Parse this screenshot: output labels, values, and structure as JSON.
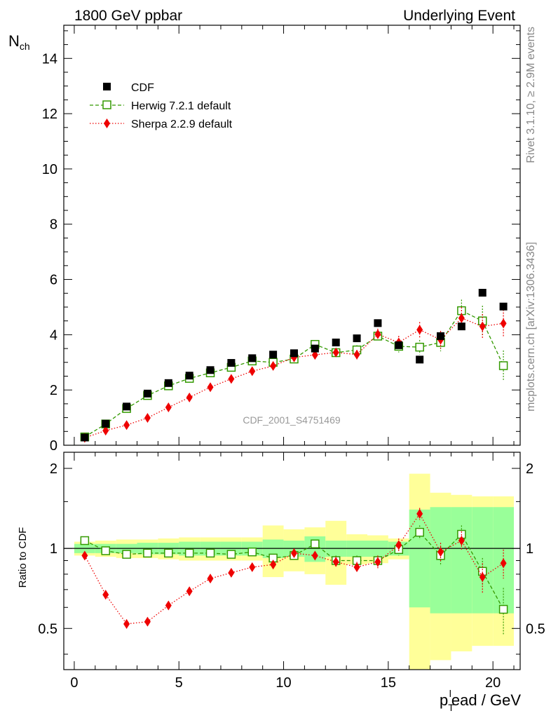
{
  "header": {
    "left": "1800 GeV ppbar",
    "right": "Underlying Event"
  },
  "side_labels": {
    "rivet": "Rivet 3.1.10, ≥ 2.9M events",
    "mcplots": "mcplots.cern.ch [arXiv:1306.3436]"
  },
  "watermark": "CDF_2001_S4751469",
  "chart_data": [
    {
      "type": "scatter",
      "panel": "main",
      "ylabel_main": "N",
      "ylabel_sub": "ch",
      "ylim": [
        0,
        15.2
      ],
      "xlim": [
        -0.5,
        21.3
      ],
      "yticks": [
        0,
        2,
        4,
        6,
        8,
        10,
        12,
        14
      ],
      "x": [
        0.5,
        1.5,
        2.5,
        3.5,
        4.5,
        5.5,
        6.5,
        7.5,
        8.5,
        9.5,
        10.5,
        11.5,
        12.5,
        13.5,
        14.5,
        15.5,
        16.5,
        17.5,
        18.5,
        19.5,
        20.5
      ],
      "legend": [
        "CDF",
        "Herwig 7.2.1 default",
        "Sherpa 2.2.9 default"
      ],
      "series": [
        {
          "name": "CDF",
          "color": "#000000",
          "marker": "square",
          "values": [
            0.28,
            0.78,
            1.4,
            1.87,
            2.25,
            2.52,
            2.72,
            2.98,
            3.15,
            3.28,
            3.33,
            3.5,
            3.72,
            3.87,
            4.42,
            3.62,
            3.1,
            3.95,
            4.3,
            5.52,
            5.02
          ]
        },
        {
          "name": "Herwig 7.2.1 default",
          "color": "#339900",
          "marker": "open-square",
          "line": "dashed",
          "values": [
            0.3,
            0.77,
            1.33,
            1.8,
            2.15,
            2.42,
            2.62,
            2.82,
            3.05,
            3.0,
            3.12,
            3.65,
            3.35,
            3.45,
            3.95,
            3.58,
            3.55,
            3.72,
            4.87,
            4.5,
            2.88
          ],
          "errors": [
            0.02,
            0.03,
            0.04,
            0.05,
            0.06,
            0.06,
            0.07,
            0.08,
            0.09,
            0.1,
            0.11,
            0.13,
            0.15,
            0.17,
            0.2,
            0.22,
            0.26,
            0.32,
            0.4,
            0.55,
            0.55
          ]
        },
        {
          "name": "Sherpa 2.2.9 default",
          "color": "#ee0000",
          "marker": "diamond",
          "line": "dotted",
          "values": [
            0.27,
            0.53,
            0.73,
            0.99,
            1.37,
            1.73,
            2.1,
            2.4,
            2.68,
            2.87,
            3.18,
            3.27,
            3.36,
            3.28,
            4.02,
            3.72,
            4.18,
            3.82,
            4.6,
            4.3,
            4.41
          ],
          "errors": [
            0.02,
            0.02,
            0.03,
            0.04,
            0.05,
            0.06,
            0.07,
            0.08,
            0.09,
            0.1,
            0.11,
            0.13,
            0.15,
            0.17,
            0.2,
            0.24,
            0.28,
            0.32,
            0.4,
            0.45,
            0.5
          ]
        }
      ]
    },
    {
      "type": "line",
      "panel": "ratio",
      "ylabel": "Ratio to CDF",
      "xlabel_main": "p",
      "xlabel_sub": "T",
      "xlabel_sup": "l",
      "xlabel_rest": "ead / GeV",
      "ylim": [
        0.35,
        2.3
      ],
      "xlim": [
        -0.5,
        21.3
      ],
      "yticks": [
        0.5,
        1,
        2
      ],
      "yticklabels": [
        "0.5",
        "1",
        "2"
      ],
      "xticks": [
        0,
        5,
        10,
        15,
        20
      ],
      "x": [
        0.5,
        1.5,
        2.5,
        3.5,
        4.5,
        5.5,
        6.5,
        7.5,
        8.5,
        9.5,
        10.5,
        11.5,
        12.5,
        13.5,
        14.5,
        15.5,
        16.5,
        17.5,
        18.5,
        19.5,
        20.5
      ],
      "band_inner_half": [
        0.04,
        0.04,
        0.04,
        0.05,
        0.05,
        0.06,
        0.06,
        0.06,
        0.06,
        0.08,
        0.07,
        0.11,
        0.07,
        0.07,
        0.07,
        0.06,
        0.4,
        0.43,
        0.43,
        0.43,
        0.43
      ],
      "band_outer_half": [
        0.06,
        0.07,
        0.08,
        0.08,
        0.09,
        0.1,
        0.1,
        0.1,
        0.1,
        0.22,
        0.18,
        0.2,
        0.27,
        0.13,
        0.12,
        0.09,
        0.91,
        0.62,
        0.59,
        0.57,
        0.57
      ],
      "series": [
        {
          "name": "Herwig 7.2.1 default",
          "color": "#339900",
          "values": [
            1.07,
            0.98,
            0.95,
            0.96,
            0.96,
            0.96,
            0.96,
            0.95,
            0.97,
            0.92,
            0.94,
            1.04,
            0.9,
            0.9,
            0.9,
            0.99,
            1.15,
            0.94,
            1.13,
            0.82,
            0.59
          ],
          "errors": [
            0.02,
            0.02,
            0.02,
            0.02,
            0.02,
            0.02,
            0.02,
            0.02,
            0.02,
            0.02,
            0.02,
            0.03,
            0.04,
            0.04,
            0.04,
            0.05,
            0.07,
            0.08,
            0.09,
            0.1,
            0.12
          ]
        },
        {
          "name": "Sherpa 2.2.9 default",
          "color": "#ee0000",
          "values": [
            0.94,
            0.67,
            0.52,
            0.53,
            0.61,
            0.69,
            0.77,
            0.81,
            0.85,
            0.87,
            0.96,
            0.94,
            0.89,
            0.85,
            0.89,
            1.03,
            1.35,
            0.97,
            1.07,
            0.78,
            0.88
          ],
          "errors": [
            0.02,
            0.02,
            0.02,
            0.02,
            0.02,
            0.02,
            0.02,
            0.02,
            0.02,
            0.02,
            0.03,
            0.03,
            0.04,
            0.04,
            0.05,
            0.06,
            0.07,
            0.08,
            0.09,
            0.1,
            0.11
          ]
        }
      ]
    }
  ]
}
